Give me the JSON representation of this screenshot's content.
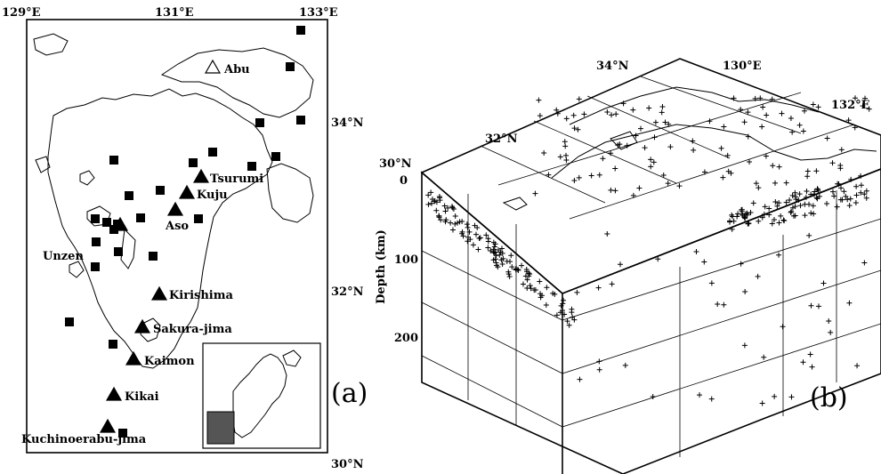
{
  "panel_a": {
    "label": "(a)",
    "corner_labels": {
      "top_left": "129°E",
      "top_mid": "131°E",
      "top_right": "133°E",
      "right_34": "34°N",
      "right_32": "32°N",
      "bottom_right": "30°N"
    },
    "volcanoes": [
      {
        "name": "Abu",
        "active": false
      },
      {
        "name": "Tsurumi",
        "active": true
      },
      {
        "name": "Kuju",
        "active": true
      },
      {
        "name": "Aso",
        "active": true
      },
      {
        "name": "Unzen",
        "active": true
      },
      {
        "name": "Kirishima",
        "active": true
      },
      {
        "name": "Sakura-jima",
        "active": true
      },
      {
        "name": "Kaimon",
        "active": true
      },
      {
        "name": "Kikai",
        "active": true
      },
      {
        "name": "Kuchinoerabu-jima",
        "active": true
      }
    ],
    "station_symbol": "filled-square",
    "volcano_symbol": "triangle"
  },
  "panel_b": {
    "label": "(b)",
    "axis_label": "Depth (km)",
    "depth_ticks": [
      "0",
      "100",
      "200"
    ],
    "top_labels": {
      "lat_30": "30°N",
      "lat_32": "32°N",
      "lat_34": "34°N",
      "lon_130": "130°E",
      "lon_132": "132°E"
    },
    "event_symbol": "plus"
  }
}
